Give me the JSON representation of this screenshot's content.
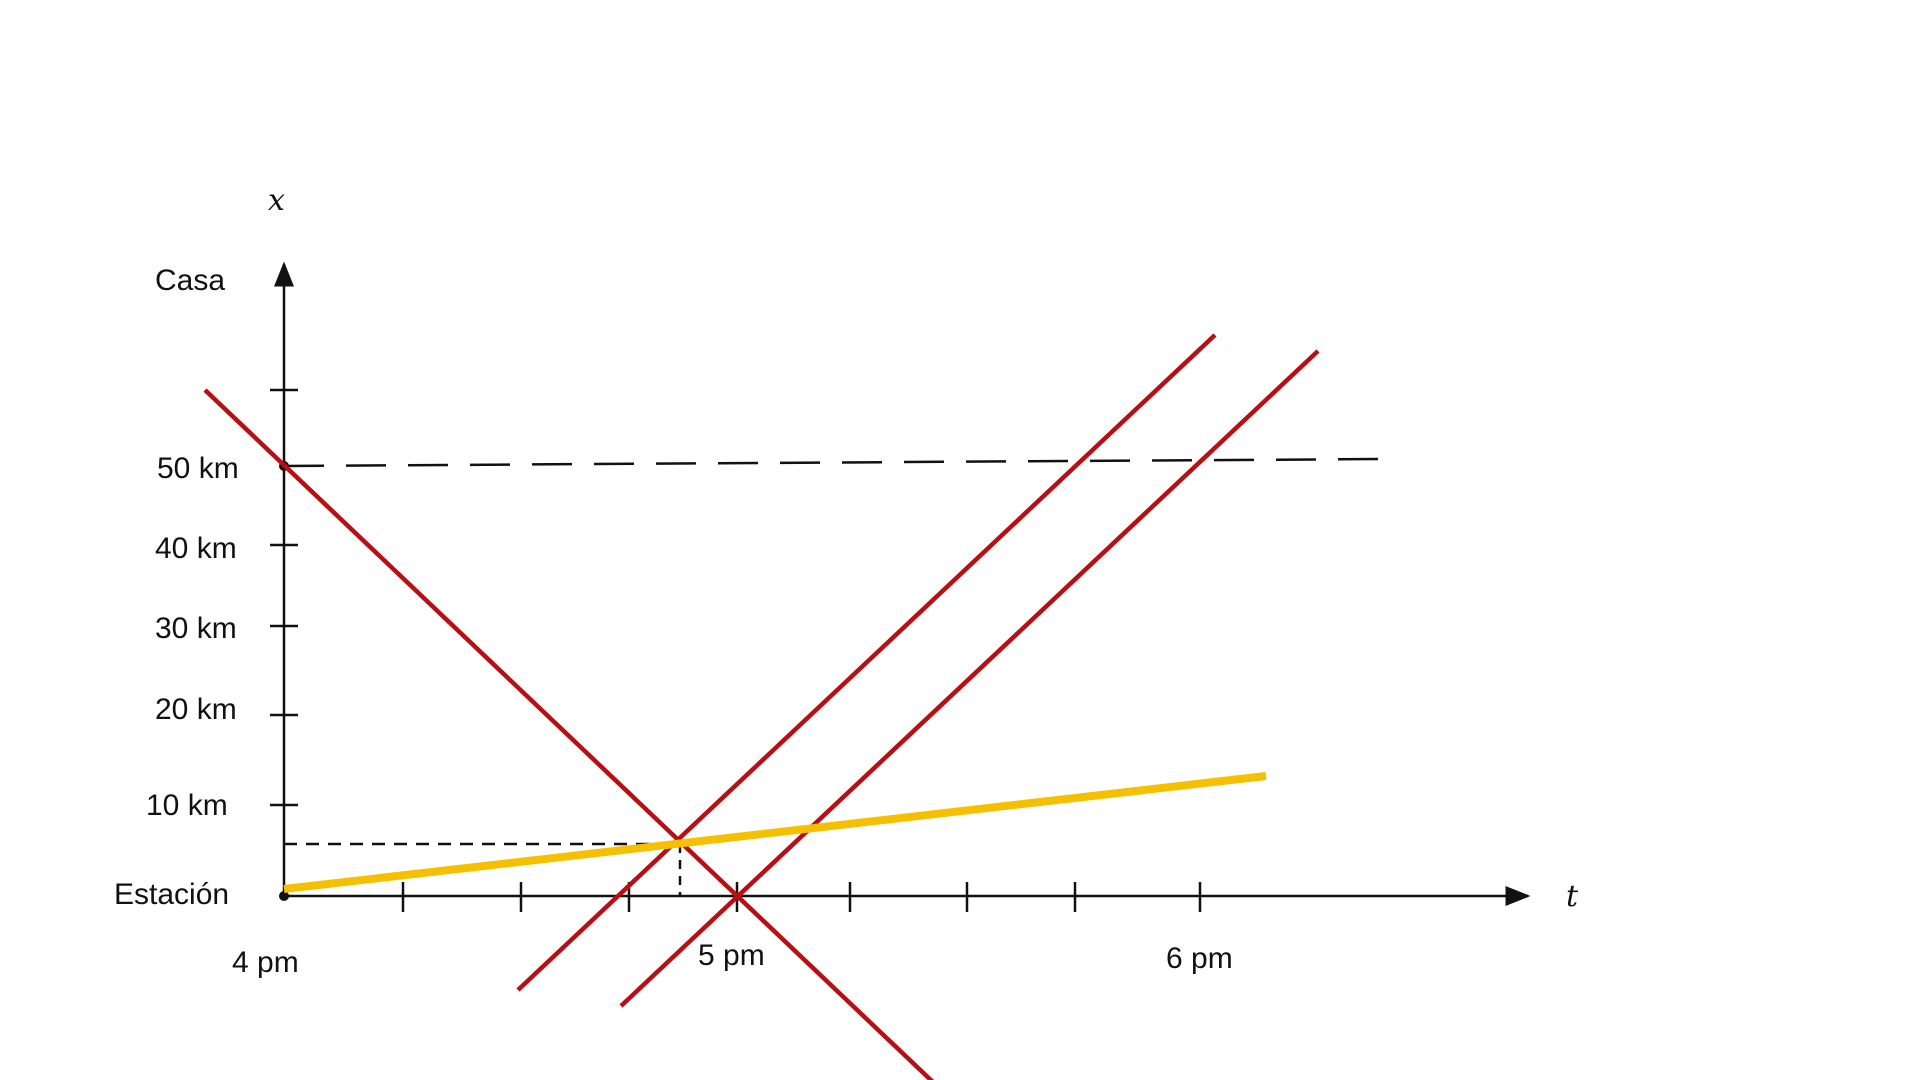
{
  "axes": {
    "x_axis_variable": "t",
    "y_axis_variable": "x"
  },
  "y_labels": {
    "top": "Casa",
    "bottom": "Estación",
    "ticks": [
      "50 km",
      "40 km",
      "30 km",
      "20 km",
      "10 km"
    ]
  },
  "x_labels": {
    "ticks": [
      "4 pm",
      "5 pm",
      "6 pm"
    ]
  },
  "colors": {
    "axis": "#111111",
    "worldline_red": "#b80f14",
    "worldline_yellow": "#f5c000",
    "guide": "#111111",
    "background": "#ffffff"
  }
}
